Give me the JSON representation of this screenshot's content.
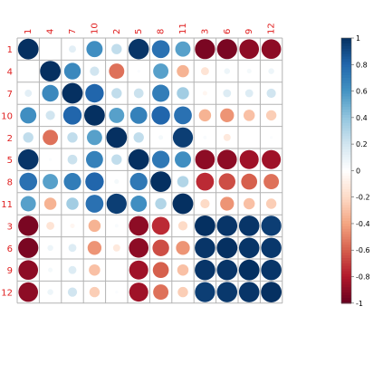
{
  "chart_data": {
    "type": "heatmap",
    "style": "corrplot-circle",
    "labels": [
      "1",
      "4",
      "7",
      "10",
      "2",
      "5",
      "8",
      "11",
      "3",
      "6",
      "9",
      "12"
    ],
    "matrix": [
      [
        1.0,
        0.0,
        0.12,
        0.62,
        0.25,
        0.98,
        0.75,
        0.55,
        -0.95,
        -0.95,
        -0.9,
        -0.9
      ],
      [
        0.0,
        1.0,
        0.65,
        0.2,
        -0.55,
        0.02,
        0.55,
        -0.35,
        -0.15,
        0.08,
        0.05,
        0.08
      ],
      [
        0.12,
        0.65,
        1.0,
        0.8,
        0.25,
        0.22,
        0.7,
        0.35,
        -0.05,
        0.15,
        0.15,
        0.2
      ],
      [
        0.62,
        0.2,
        0.8,
        1.0,
        0.55,
        0.68,
        0.8,
        0.75,
        -0.35,
        -0.45,
        -0.3,
        -0.25
      ],
      [
        0.25,
        -0.55,
        0.25,
        0.55,
        1.0,
        0.25,
        0.05,
        0.95,
        0.03,
        -0.12,
        0.0,
        0.02
      ],
      [
        0.98,
        0.02,
        0.22,
        0.68,
        0.25,
        1.0,
        0.72,
        0.62,
        -0.9,
        -0.9,
        -0.85,
        -0.85
      ],
      [
        0.75,
        0.55,
        0.7,
        0.8,
        0.05,
        0.72,
        1.0,
        0.3,
        -0.75,
        -0.65,
        -0.6,
        -0.55
      ],
      [
        0.55,
        -0.35,
        0.35,
        0.75,
        0.95,
        0.62,
        0.3,
        1.0,
        -0.2,
        -0.45,
        -0.3,
        -0.25
      ],
      [
        -0.95,
        -0.15,
        -0.05,
        -0.35,
        0.03,
        -0.9,
        -0.75,
        -0.2,
        1.0,
        0.98,
        0.98,
        0.95
      ],
      [
        -0.95,
        0.08,
        0.15,
        -0.45,
        -0.12,
        -0.9,
        -0.65,
        -0.45,
        0.98,
        1.0,
        0.98,
        0.97
      ],
      [
        -0.9,
        0.05,
        0.15,
        -0.3,
        0.0,
        -0.85,
        -0.6,
        -0.3,
        0.98,
        0.98,
        1.0,
        0.98
      ],
      [
        -0.9,
        0.08,
        0.2,
        -0.25,
        0.02,
        -0.85,
        -0.55,
        -0.25,
        0.95,
        0.97,
        0.98,
        1.0
      ]
    ],
    "color_scale": {
      "min": -1,
      "max": 1,
      "stops": [
        "#67001f",
        "#b2182b",
        "#d6604d",
        "#f4a582",
        "#fddbc7",
        "#ffffff",
        "#d1e5f0",
        "#92c5de",
        "#4393c3",
        "#2166ac",
        "#053061"
      ]
    },
    "colorbar_ticks": [
      "1",
      "0.8",
      "0.6",
      "0.4",
      "0.2",
      "0",
      "-0.2",
      "-0.4",
      "-0.6",
      "-0.8",
      "-1"
    ],
    "colorbar_values": [
      1,
      0.8,
      0.6,
      0.4,
      0.2,
      0,
      -0.2,
      -0.4,
      -0.6,
      -0.8,
      -1
    ],
    "label_color": "#e02020",
    "grid_color": "#b3b3b3",
    "title": "",
    "xlabel": "",
    "ylabel": ""
  }
}
